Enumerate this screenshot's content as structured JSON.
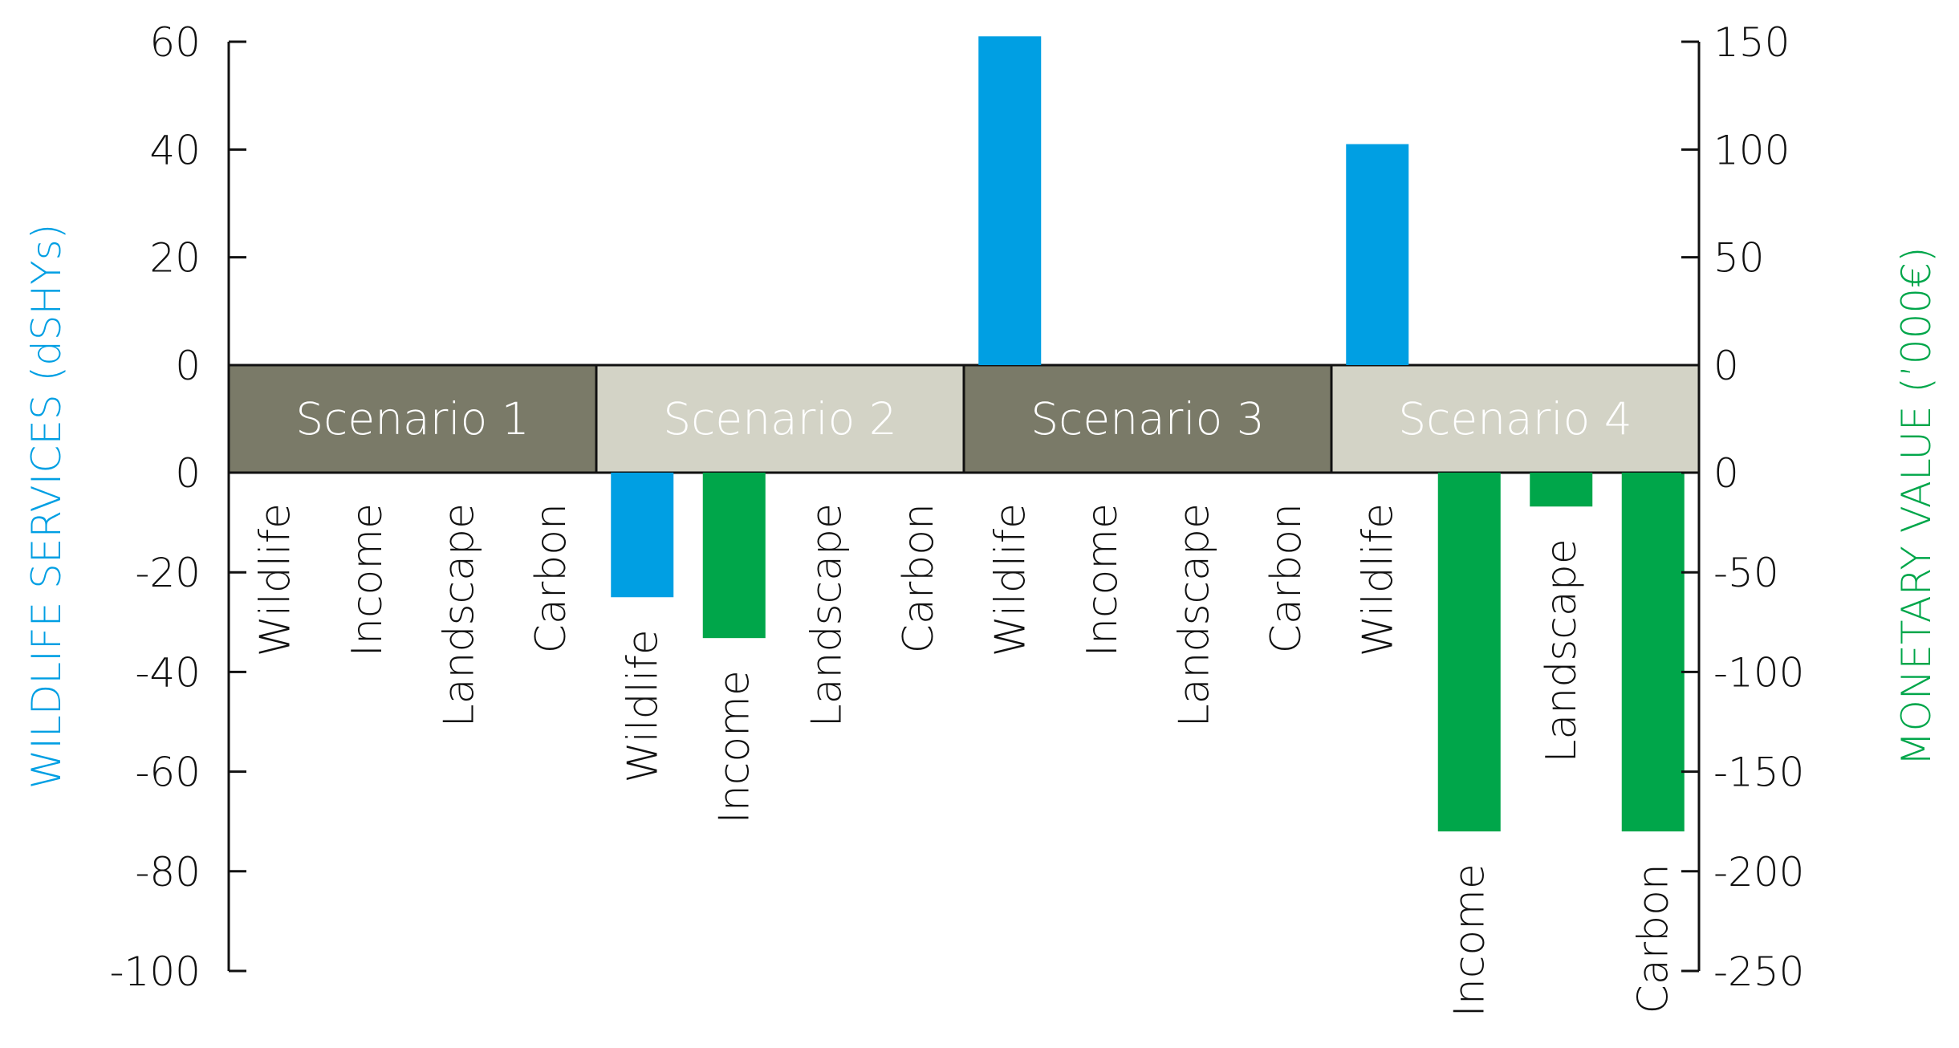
{
  "chart_data": {
    "type": "bar",
    "ylabel_left": "WILDLIFE SERVICES (dSHYs)",
    "ylabel_right": "MONETARY VALUE (’000€)",
    "left_axis": {
      "upper_ylim": [
        0,
        60
      ],
      "lower_ylim": [
        -100,
        0
      ],
      "upper_ticks": [
        "60",
        "40",
        "20",
        "0"
      ],
      "lower_ticks": [
        "0",
        "-20",
        "-40",
        "-60",
        "-80",
        "-100"
      ]
    },
    "right_axis": {
      "upper_ylim": [
        0,
        150
      ],
      "lower_ylim": [
        -250,
        0
      ],
      "upper_ticks": [
        "150",
        "100",
        "50",
        "0"
      ],
      "lower_ticks": [
        "0",
        "-50",
        "-100",
        "-150",
        "-200",
        "-250"
      ]
    },
    "scenarios": [
      {
        "name": "Scenario 1",
        "band_color": "#7a7a68",
        "bars": [
          {
            "label": "Wildlife",
            "axis": "left",
            "value": 0
          },
          {
            "label": "Income",
            "axis": "right",
            "value": 0
          },
          {
            "label": "Landscape",
            "axis": "right",
            "value": 0
          },
          {
            "label": "Carbon",
            "axis": "right",
            "value": 0
          }
        ]
      },
      {
        "name": "Scenario 2",
        "band_color": "#d3d3c6",
        "bars": [
          {
            "label": "Wildlife",
            "axis": "left",
            "value": -25
          },
          {
            "label": "Income",
            "axis": "right",
            "value": -83
          },
          {
            "label": "Landscape",
            "axis": "right",
            "value": 0
          },
          {
            "label": "Carbon",
            "axis": "right",
            "value": 0
          }
        ]
      },
      {
        "name": "Scenario 3",
        "band_color": "#7a7a68",
        "bars": [
          {
            "label": "Wildlife",
            "axis": "left",
            "value": 61
          },
          {
            "label": "Income",
            "axis": "right",
            "value": 0
          },
          {
            "label": "Landscape",
            "axis": "right",
            "value": 0
          },
          {
            "label": "Carbon",
            "axis": "right",
            "value": 0
          }
        ]
      },
      {
        "name": "Scenario 4",
        "band_color": "#d3d3c6",
        "bars": [
          {
            "label": "Wildlife",
            "axis": "left",
            "value": 41
          },
          {
            "label": "Income",
            "axis": "right",
            "value": -180
          },
          {
            "label": "Landscape",
            "axis": "right",
            "value": -17
          },
          {
            "label": "Carbon",
            "axis": "right",
            "value": -180
          }
        ]
      }
    ],
    "colors": {
      "wildlife": "#009fe3",
      "monetary": "#00a64a",
      "axis_line": "#111111",
      "band_border": "#111111"
    },
    "grid": false
  }
}
